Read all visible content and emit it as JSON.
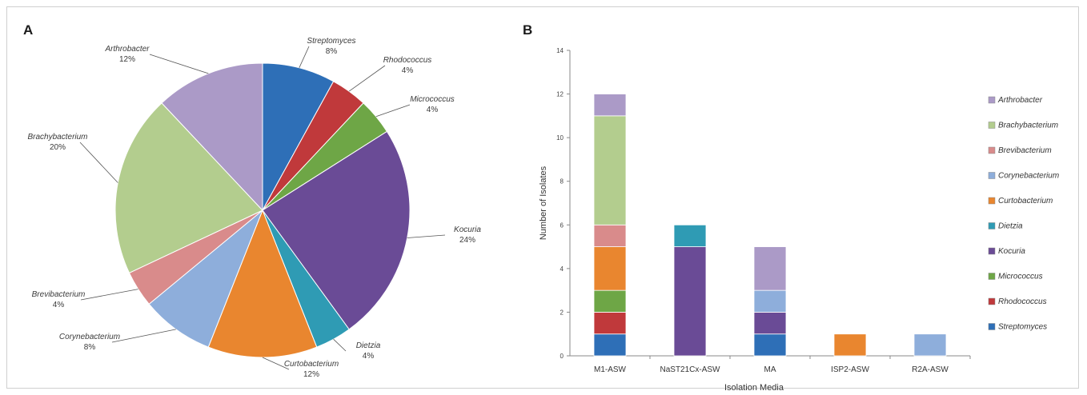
{
  "panels": {
    "a_label": "A",
    "b_label": "B"
  },
  "chart_data": [
    {
      "type": "pie",
      "title": "",
      "slices": [
        {
          "name": "Streptomyces",
          "percent_label": "8%",
          "value": 8,
          "color": "#2e6fb7"
        },
        {
          "name": "Rhodococcus",
          "percent_label": "4%",
          "value": 4,
          "color": "#c0393b"
        },
        {
          "name": "Micrococcus",
          "percent_label": "4%",
          "value": 4,
          "color": "#6ea646"
        },
        {
          "name": "Kocuria",
          "percent_label": "24%",
          "value": 24,
          "color": "#6a4b96"
        },
        {
          "name": "Dietzia",
          "percent_label": "4%",
          "value": 4,
          "color": "#2f9bb4"
        },
        {
          "name": "Curtobacterium",
          "percent_label": "12%",
          "value": 12,
          "color": "#e9862f"
        },
        {
          "name": "Corynebacterium",
          "percent_label": "8%",
          "value": 8,
          "color": "#8eaedb"
        },
        {
          "name": "Brevibacterium",
          "percent_label": "4%",
          "value": 4,
          "color": "#d98b8b"
        },
        {
          "name": "Brachybacterium",
          "percent_label": "20%",
          "value": 20,
          "color": "#b3cd8e"
        },
        {
          "name": "Arthrobacter",
          "percent_label": "12%",
          "value": 12,
          "color": "#ab9ac7"
        }
      ]
    },
    {
      "type": "bar",
      "stacked": true,
      "xlabel": "Isolation Media",
      "ylabel": "Number of Isolates",
      "ylim": [
        0,
        14
      ],
      "yticks": [
        "0",
        "2",
        "4",
        "6",
        "8",
        "10",
        "12",
        "14"
      ],
      "categories": [
        "M1-ASW",
        "NaST21Cx-ASW",
        "MA",
        "ISP2-ASW",
        "R2A-ASW"
      ],
      "legend_position": "right",
      "series": [
        {
          "name": "Streptomyces",
          "color": "#2e6fb7",
          "values": [
            1,
            0,
            1,
            0,
            0
          ]
        },
        {
          "name": "Rhodococcus",
          "color": "#c0393b",
          "values": [
            1,
            0,
            0,
            0,
            0
          ]
        },
        {
          "name": "Micrococcus",
          "color": "#6ea646",
          "values": [
            1,
            0,
            0,
            0,
            0
          ]
        },
        {
          "name": "Kocuria",
          "color": "#6a4b96",
          "values": [
            0,
            5,
            1,
            0,
            0
          ]
        },
        {
          "name": "Dietzia",
          "color": "#2f9bb4",
          "values": [
            0,
            1,
            0,
            0,
            0
          ]
        },
        {
          "name": "Curtobacterium",
          "color": "#e9862f",
          "values": [
            2,
            0,
            0,
            1,
            0
          ]
        },
        {
          "name": "Corynebacterium",
          "color": "#8eaedb",
          "values": [
            0,
            0,
            1,
            0,
            1
          ]
        },
        {
          "name": "Brevibacterium",
          "color": "#d98b8b",
          "values": [
            1,
            0,
            0,
            0,
            0
          ]
        },
        {
          "name": "Brachybacterium",
          "color": "#b3cd8e",
          "values": [
            5,
            0,
            0,
            0,
            0
          ]
        },
        {
          "name": "Arthrobacter",
          "color": "#ab9ac7",
          "values": [
            1,
            0,
            2,
            0,
            0
          ]
        }
      ],
      "legend_order": [
        "Arthrobacter",
        "Brachybacterium",
        "Brevibacterium",
        "Corynebacterium",
        "Curtobacterium",
        "Dietzia",
        "Kocuria",
        "Micrococcus",
        "Rhodococcus",
        "Streptomyces"
      ]
    }
  ]
}
